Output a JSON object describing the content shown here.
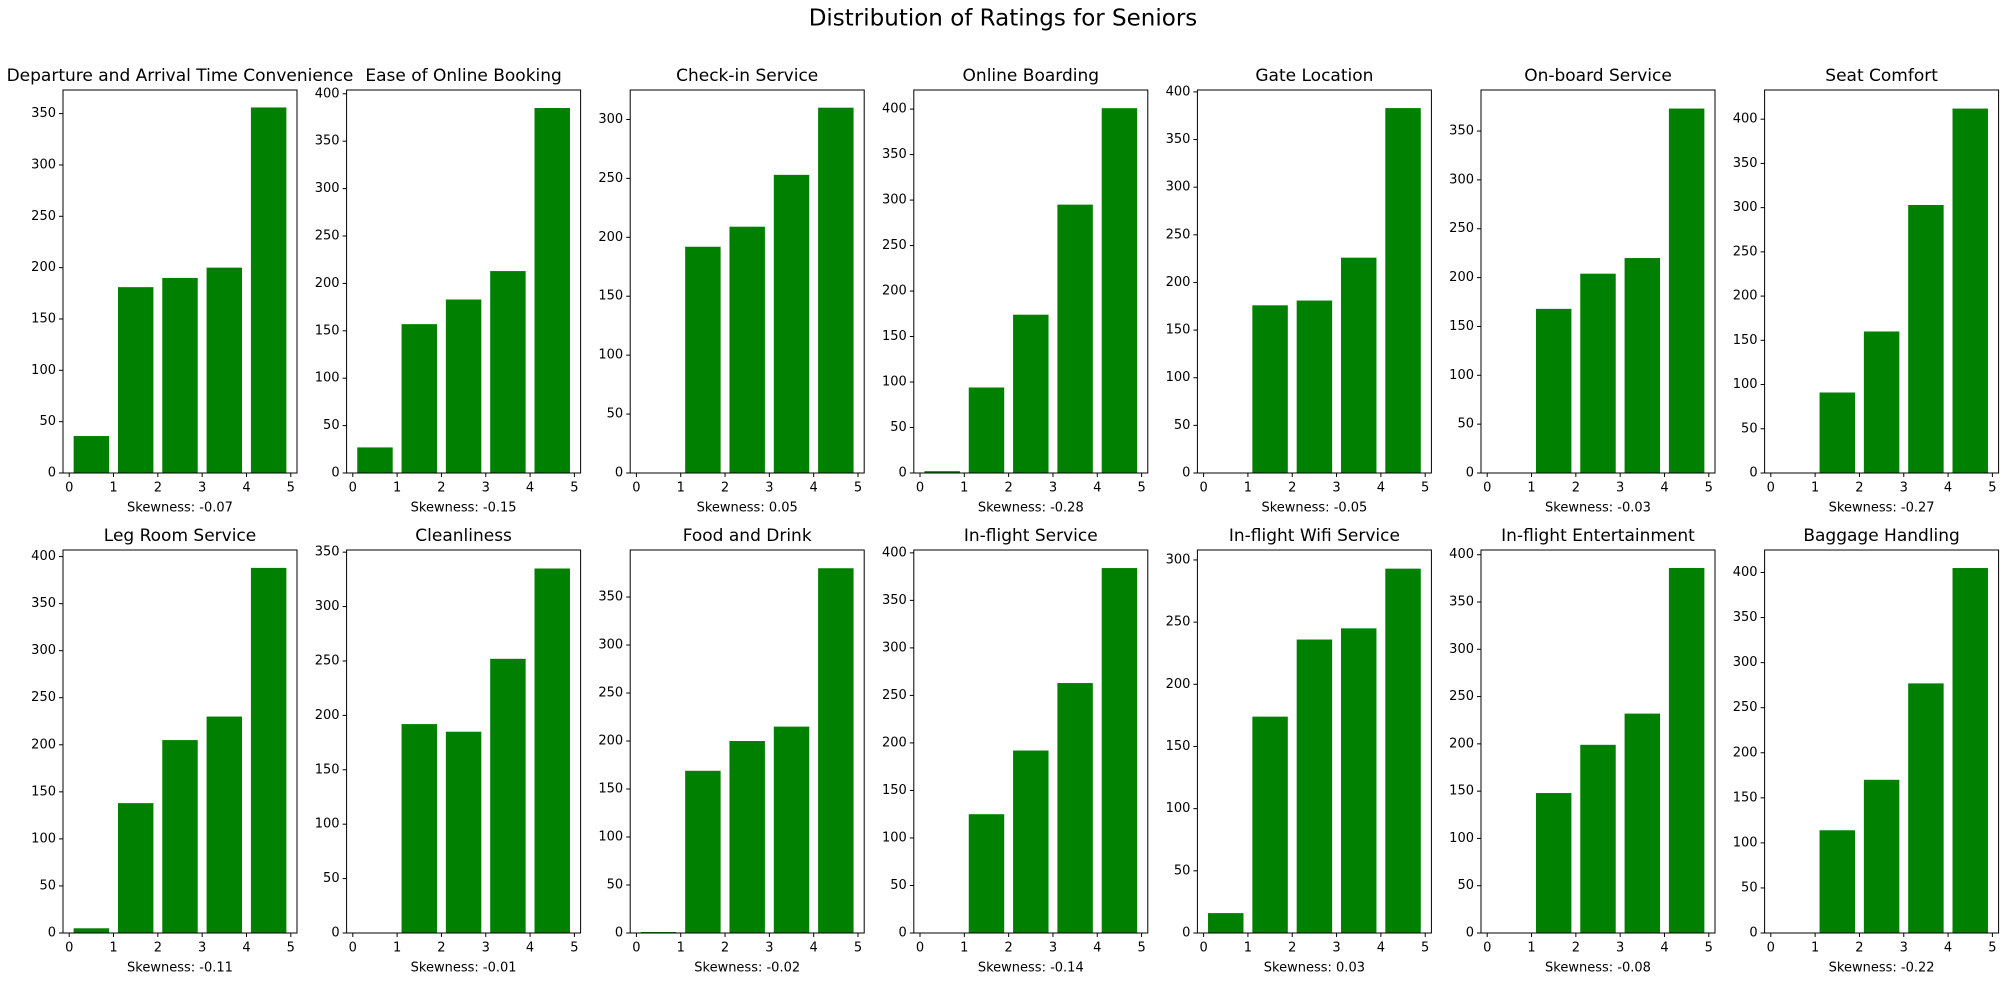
{
  "title": "Distribution of Ratings for Seniors",
  "chart_data": [
    {
      "type": "histogram",
      "title": "Departure and Arrival Time Convenience",
      "xlabel": "Skewness: -0.07",
      "bins": [
        0,
        1,
        2,
        3,
        4,
        5
      ],
      "values": [
        36,
        181,
        190,
        200,
        356
      ],
      "color": "#008000",
      "xlim": [
        -0.14,
        5.14
      ],
      "xticks": [
        0,
        1,
        2,
        3,
        4,
        5
      ],
      "ylim": [
        0,
        373
      ],
      "yticks": [
        0,
        50,
        100,
        150,
        200,
        250,
        300,
        350
      ]
    },
    {
      "type": "histogram",
      "title": "Ease of Online Booking",
      "xlabel": "Skewness: -0.15",
      "bins": [
        0,
        1,
        2,
        3,
        4,
        5
      ],
      "values": [
        27,
        157,
        183,
        213,
        385
      ],
      "color": "#008000",
      "xlim": [
        -0.14,
        5.14
      ],
      "xticks": [
        0,
        1,
        2,
        3,
        4,
        5
      ],
      "ylim": [
        0,
        404
      ],
      "yticks": [
        0,
        50,
        100,
        150,
        200,
        250,
        300,
        350,
        400
      ]
    },
    {
      "type": "histogram",
      "title": "Check-in Service",
      "xlabel": "Skewness: 0.05",
      "bins": [
        0,
        1,
        2,
        3,
        4,
        5
      ],
      "values": [
        0,
        192,
        209,
        253,
        310
      ],
      "color": "#008000",
      "xlim": [
        -0.14,
        5.14
      ],
      "xticks": [
        0,
        1,
        2,
        3,
        4,
        5
      ],
      "ylim": [
        0,
        325
      ],
      "yticks": [
        0,
        50,
        100,
        150,
        200,
        250,
        300
      ]
    },
    {
      "type": "histogram",
      "title": "Online Boarding",
      "xlabel": "Skewness: -0.28",
      "bins": [
        0,
        1,
        2,
        3,
        4,
        5
      ],
      "values": [
        2,
        94,
        174,
        295,
        401
      ],
      "color": "#008000",
      "xlim": [
        -0.14,
        5.14
      ],
      "xticks": [
        0,
        1,
        2,
        3,
        4,
        5
      ],
      "ylim": [
        0,
        421
      ],
      "yticks": [
        0,
        50,
        100,
        150,
        200,
        250,
        300,
        350,
        400
      ]
    },
    {
      "type": "histogram",
      "title": "Gate Location",
      "xlabel": "Skewness: -0.05",
      "bins": [
        0,
        1,
        2,
        3,
        4,
        5
      ],
      "values": [
        0,
        176,
        181,
        226,
        383
      ],
      "color": "#008000",
      "xlim": [
        -0.14,
        5.14
      ],
      "xticks": [
        0,
        1,
        2,
        3,
        4,
        5
      ],
      "ylim": [
        0,
        402
      ],
      "yticks": [
        0,
        50,
        100,
        150,
        200,
        250,
        300,
        350,
        400
      ]
    },
    {
      "type": "histogram",
      "title": "On-board Service",
      "xlabel": "Skewness: -0.03",
      "bins": [
        0,
        1,
        2,
        3,
        4,
        5
      ],
      "values": [
        0,
        168,
        204,
        220,
        373
      ],
      "color": "#008000",
      "xlim": [
        -0.14,
        5.14
      ],
      "xticks": [
        0,
        1,
        2,
        3,
        4,
        5
      ],
      "ylim": [
        0,
        392
      ],
      "yticks": [
        0,
        50,
        100,
        150,
        200,
        250,
        300,
        350
      ]
    },
    {
      "type": "histogram",
      "title": "Seat Comfort",
      "xlabel": "Skewness: -0.27",
      "bins": [
        0,
        1,
        2,
        3,
        4,
        5
      ],
      "values": [
        0,
        91,
        160,
        303,
        412
      ],
      "color": "#008000",
      "xlim": [
        -0.14,
        5.14
      ],
      "xticks": [
        0,
        1,
        2,
        3,
        4,
        5
      ],
      "ylim": [
        0,
        433
      ],
      "yticks": [
        0,
        50,
        100,
        150,
        200,
        250,
        300,
        350,
        400
      ]
    },
    {
      "type": "histogram",
      "title": "Leg Room Service",
      "xlabel": "Skewness: -0.11",
      "bins": [
        0,
        1,
        2,
        3,
        4,
        5
      ],
      "values": [
        5,
        138,
        205,
        230,
        388
      ],
      "color": "#008000",
      "xlim": [
        -0.14,
        5.14
      ],
      "xticks": [
        0,
        1,
        2,
        3,
        4,
        5
      ],
      "ylim": [
        0,
        407
      ],
      "yticks": [
        0,
        50,
        100,
        150,
        200,
        250,
        300,
        350,
        400
      ]
    },
    {
      "type": "histogram",
      "title": "Cleanliness",
      "xlabel": "Skewness: -0.01",
      "bins": [
        0,
        1,
        2,
        3,
        4,
        5
      ],
      "values": [
        0,
        192,
        185,
        252,
        335
      ],
      "color": "#008000",
      "xlim": [
        -0.14,
        5.14
      ],
      "xticks": [
        0,
        1,
        2,
        3,
        4,
        5
      ],
      "ylim": [
        0,
        352
      ],
      "yticks": [
        0,
        50,
        100,
        150,
        200,
        250,
        300,
        350
      ]
    },
    {
      "type": "histogram",
      "title": "Food and Drink",
      "xlabel": "Skewness: -0.02",
      "bins": [
        0,
        1,
        2,
        3,
        4,
        5
      ],
      "values": [
        1,
        169,
        200,
        215,
        380
      ],
      "color": "#008000",
      "xlim": [
        -0.14,
        5.14
      ],
      "xticks": [
        0,
        1,
        2,
        3,
        4,
        5
      ],
      "ylim": [
        0,
        399
      ],
      "yticks": [
        0,
        50,
        100,
        150,
        200,
        250,
        300,
        350
      ]
    },
    {
      "type": "histogram",
      "title": "In-flight Service",
      "xlabel": "Skewness: -0.14",
      "bins": [
        0,
        1,
        2,
        3,
        4,
        5
      ],
      "values": [
        0,
        125,
        192,
        263,
        384
      ],
      "color": "#008000",
      "xlim": [
        -0.14,
        5.14
      ],
      "xticks": [
        0,
        1,
        2,
        3,
        4,
        5
      ],
      "ylim": [
        0,
        403
      ],
      "yticks": [
        0,
        50,
        100,
        150,
        200,
        250,
        300,
        350,
        400
      ]
    },
    {
      "type": "histogram",
      "title": "In-flight Wifi Service",
      "xlabel": "Skewness: 0.03",
      "bins": [
        0,
        1,
        2,
        3,
        4,
        5
      ],
      "values": [
        16,
        174,
        236,
        245,
        293
      ],
      "color": "#008000",
      "xlim": [
        -0.14,
        5.14
      ],
      "xticks": [
        0,
        1,
        2,
        3,
        4,
        5
      ],
      "ylim": [
        0,
        308
      ],
      "yticks": [
        0,
        50,
        100,
        150,
        200,
        250,
        300
      ]
    },
    {
      "type": "histogram",
      "title": "In-flight Entertainment",
      "xlabel": "Skewness: -0.08",
      "bins": [
        0,
        1,
        2,
        3,
        4,
        5
      ],
      "values": [
        0,
        148,
        199,
        232,
        386
      ],
      "color": "#008000",
      "xlim": [
        -0.14,
        5.14
      ],
      "xticks": [
        0,
        1,
        2,
        3,
        4,
        5
      ],
      "ylim": [
        0,
        405
      ],
      "yticks": [
        0,
        50,
        100,
        150,
        200,
        250,
        300,
        350,
        400
      ]
    },
    {
      "type": "histogram",
      "title": "Baggage Handling",
      "xlabel": "Skewness: -0.22",
      "bins": [
        0,
        1,
        2,
        3,
        4,
        5
      ],
      "values": [
        0,
        114,
        170,
        277,
        405
      ],
      "color": "#008000",
      "xlim": [
        -0.14,
        5.14
      ],
      "xticks": [
        0,
        1,
        2,
        3,
        4,
        5
      ],
      "ylim": [
        0,
        425
      ],
      "yticks": [
        0,
        50,
        100,
        150,
        200,
        250,
        300,
        350,
        400
      ]
    }
  ]
}
